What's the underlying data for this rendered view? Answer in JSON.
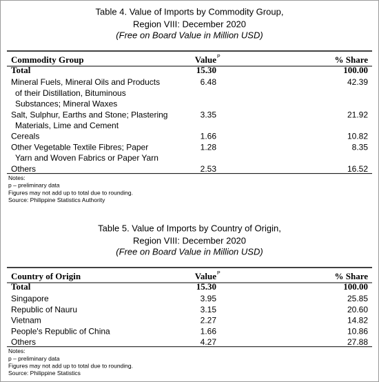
{
  "tables": [
    {
      "title": [
        "Table 4. Value of Imports by Commodity Group,",
        "Region VIII: December 2020",
        "(Free on Board Value in Million USD)"
      ],
      "header": {
        "label": "Commodity Group",
        "value": "Value",
        "value_note": "P",
        "share": "% Share"
      },
      "total": {
        "label": "Total",
        "value": "15.30",
        "share": "100.00"
      },
      "rows": [
        {
          "label": [
            "Mineral Fuels, Mineral Oils and Products",
            "of their Distillation, Bituminous",
            "Substances; Mineral Waxes"
          ],
          "value": "6.48",
          "share": "42.39"
        },
        {
          "label": [
            "Salt, Sulphur, Earths and Stone; Plastering",
            "Materials, Lime and Cement"
          ],
          "value": "3.35",
          "share": "21.92"
        },
        {
          "label": [
            "Cereals"
          ],
          "value": "1.66",
          "share": "10.82"
        },
        {
          "label": [
            "Other Vegetable Textile Fibres; Paper",
            "Yarn and Woven Fabrics or Paper Yarn"
          ],
          "value": "1.28",
          "share": "8.35"
        },
        {
          "label": [
            "Others"
          ],
          "value": "2.53",
          "share": "16.52"
        }
      ],
      "notes": [
        "Notes:",
        "p – preliminary data",
        "Figures may not add  up to total due to rounding.",
        "Source: Philippine Statistics Authority"
      ]
    },
    {
      "title": [
        "Table 5. Value of Imports by Country of Origin,",
        "Region VIII: December 2020",
        "(Free on Board Value in Million USD)"
      ],
      "header": {
        "label": "Country of Origin",
        "value": "Value",
        "value_note": "P",
        "share": "% Share"
      },
      "total": {
        "label": "Total",
        "value": "15.30",
        "share": "100.00"
      },
      "rows": [
        {
          "label": [
            "Singapore"
          ],
          "value": "3.95",
          "share": "25.85"
        },
        {
          "label": [
            "Republic of Nauru"
          ],
          "value": "3.15",
          "share": "20.60"
        },
        {
          "label": [
            "Vietnam"
          ],
          "value": "2.27",
          "share": "14.82"
        },
        {
          "label": [
            "People's Republic of China"
          ],
          "value": "1.66",
          "share": "10.86"
        },
        {
          "label": [
            "Others"
          ],
          "value": "4.27",
          "share": "27.88"
        }
      ],
      "notes": [
        "Notes:",
        "p – preliminary data",
        "Figures may not add  up to total due to rounding.",
        "Source: Philippine Statistics"
      ]
    }
  ]
}
